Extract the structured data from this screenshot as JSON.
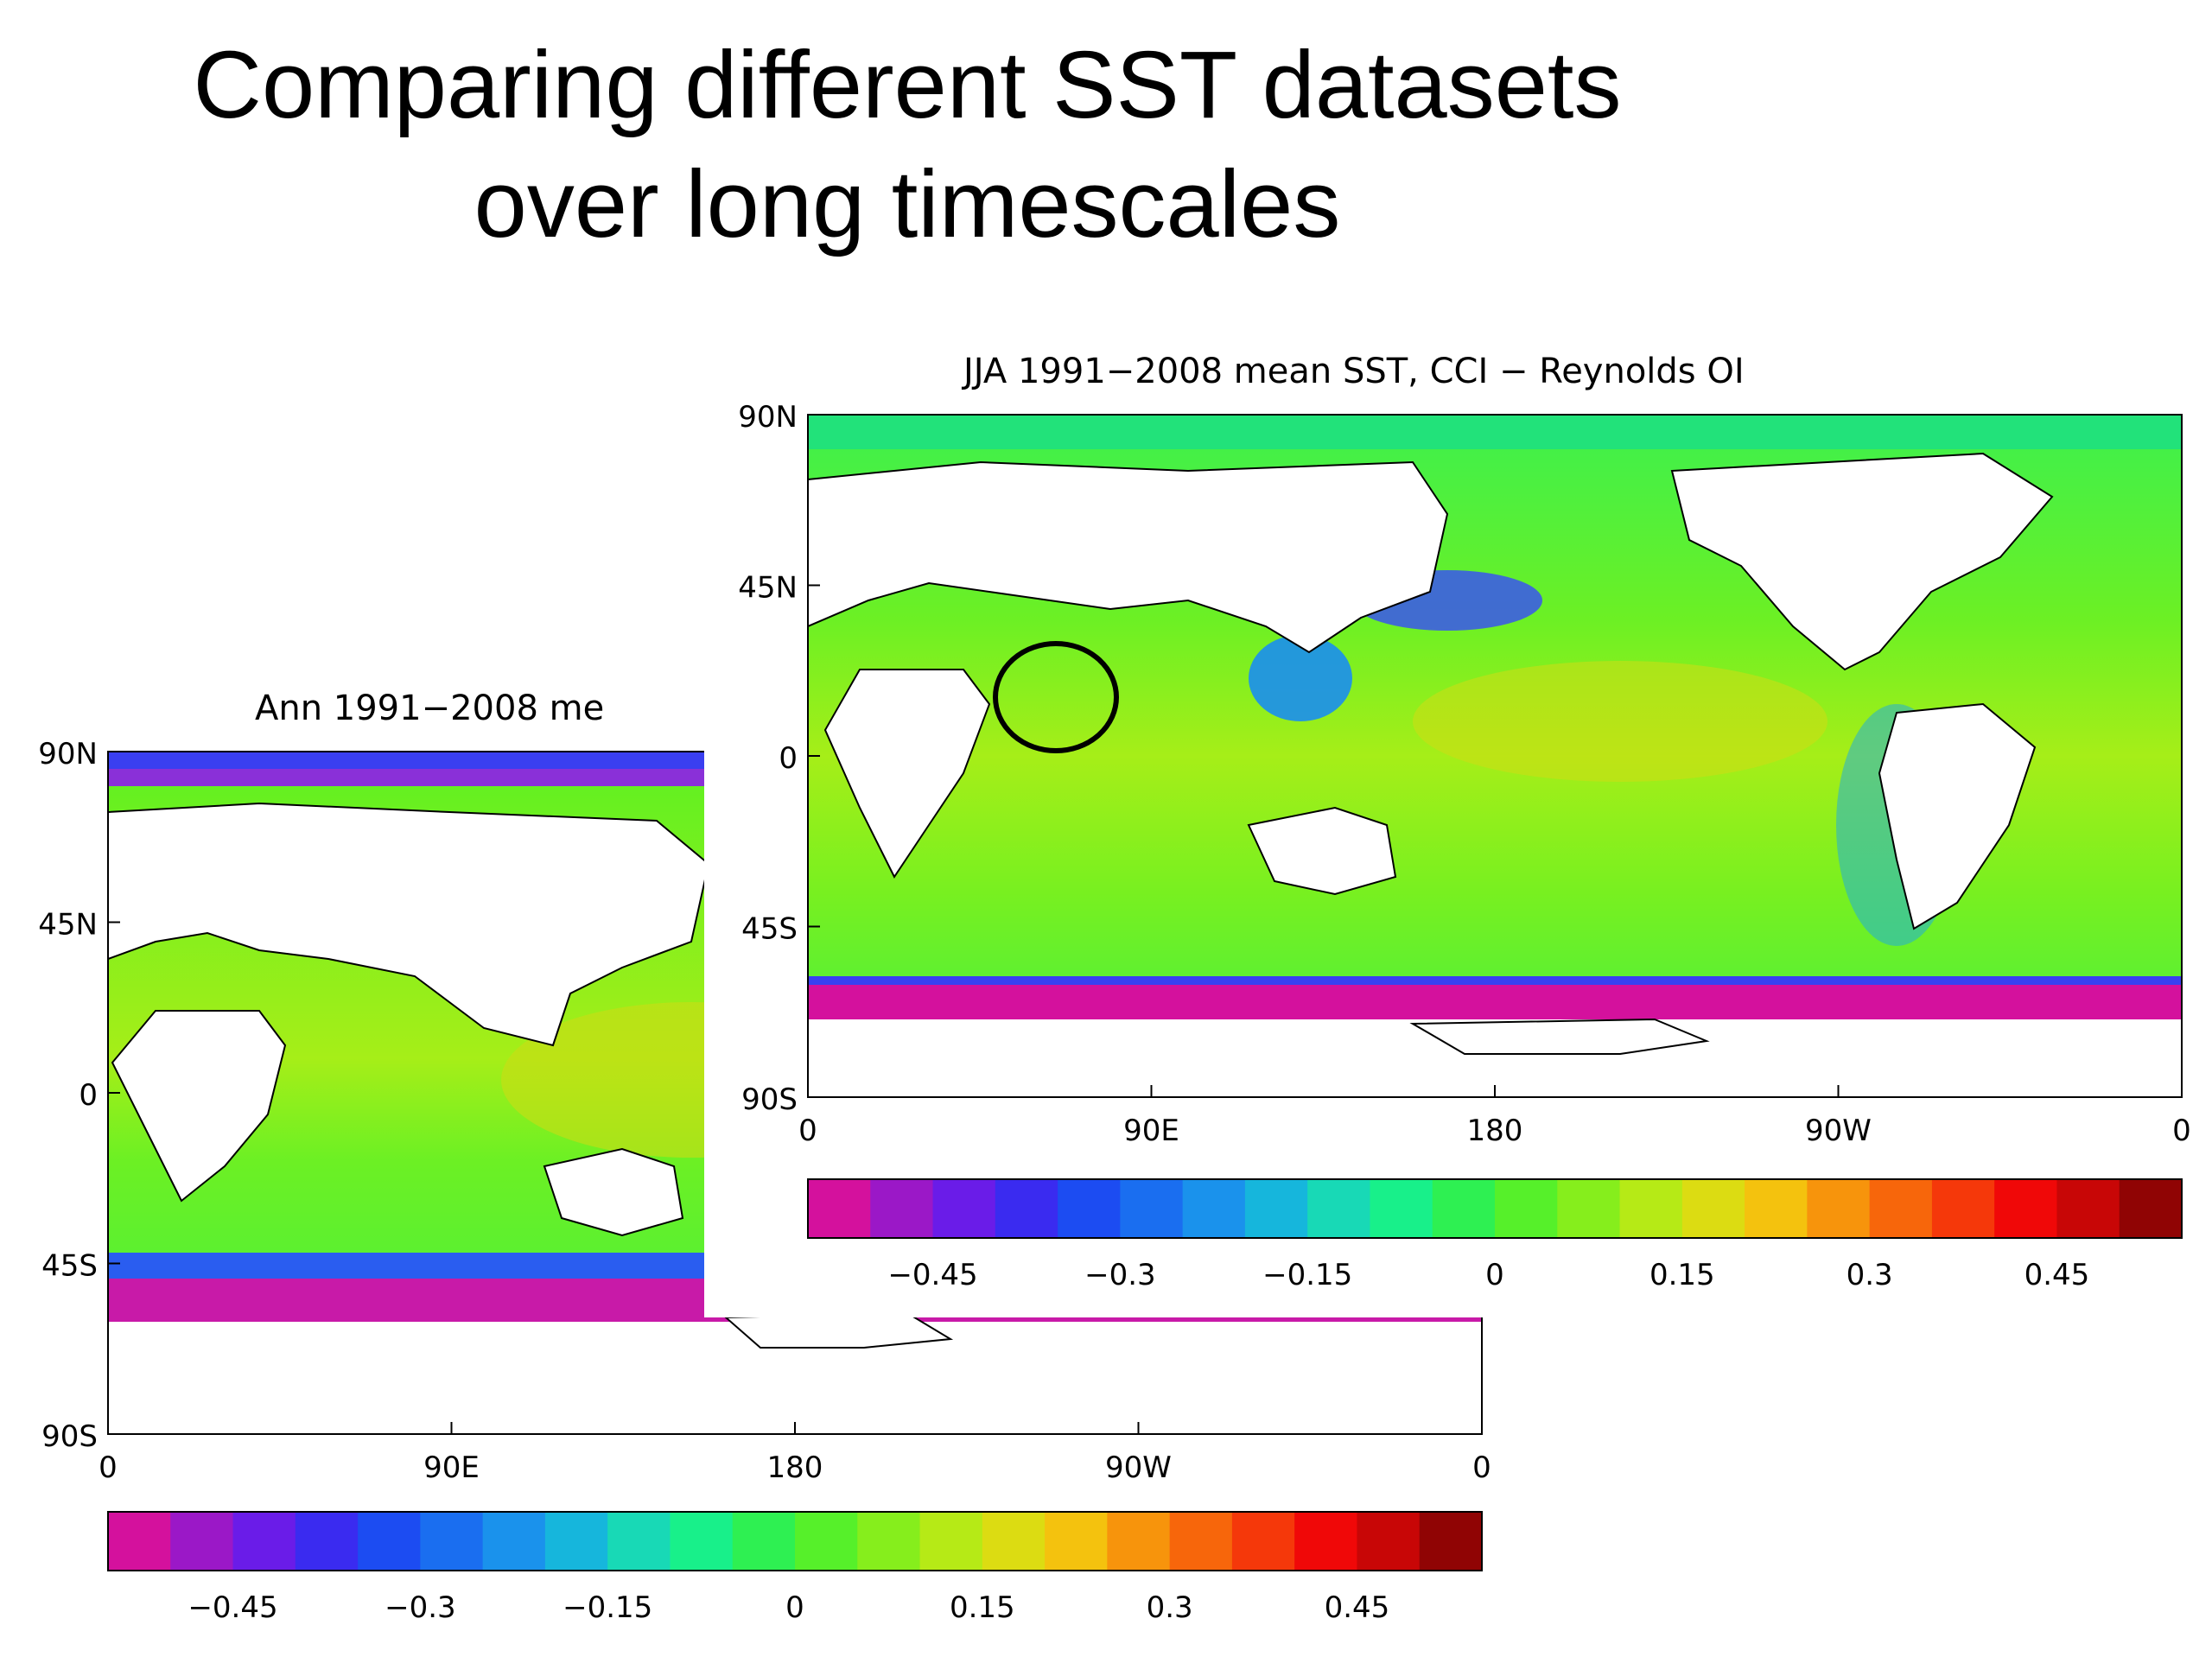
{
  "slide": {
    "title_line1": "Comparing different SST datasets",
    "title_line2": "over long timescales"
  },
  "colors": {
    "land": "#ffffff",
    "coast": "#000000",
    "highlight_circle": "#000000",
    "colorbar": [
      "#d4119d",
      "#9b18c7",
      "#6a1ce8",
      "#3a2bf0",
      "#1c4cf2",
      "#1a6ef0",
      "#1a92ec",
      "#16b6dc",
      "#18d9b6",
      "#18f08a",
      "#2ef052",
      "#56f02a",
      "#86ee1c",
      "#b6ea16",
      "#dcdc12",
      "#f4c20e",
      "#f7940c",
      "#f7660b",
      "#f5380a",
      "#f00808",
      "#c80606",
      "#900404"
    ]
  },
  "maps": [
    {
      "id": "annual",
      "title": "Ann 1991−2008 me",
      "lat_labels": [
        "90N",
        "45N",
        "0",
        "45S",
        "90S"
      ],
      "lon_labels": [
        "0",
        "90E",
        "180",
        "90W",
        "0"
      ],
      "colorbar_labels": [
        "−0.45",
        "−0.3",
        "−0.15",
        "0",
        "0.15",
        "0.3",
        "0.45"
      ]
    },
    {
      "id": "jja",
      "title": "JJA 1991−2008 mean SST, CCI − Reynolds OI",
      "lat_labels": [
        "90N",
        "45N",
        "0",
        "45S",
        "90S"
      ],
      "lon_labels": [
        "0",
        "90E",
        "180",
        "90W",
        "0"
      ],
      "colorbar_labels": [
        "−0.45",
        "−0.3",
        "−0.15",
        "0",
        "0.15",
        "0.3",
        "0.45"
      ]
    }
  ]
}
